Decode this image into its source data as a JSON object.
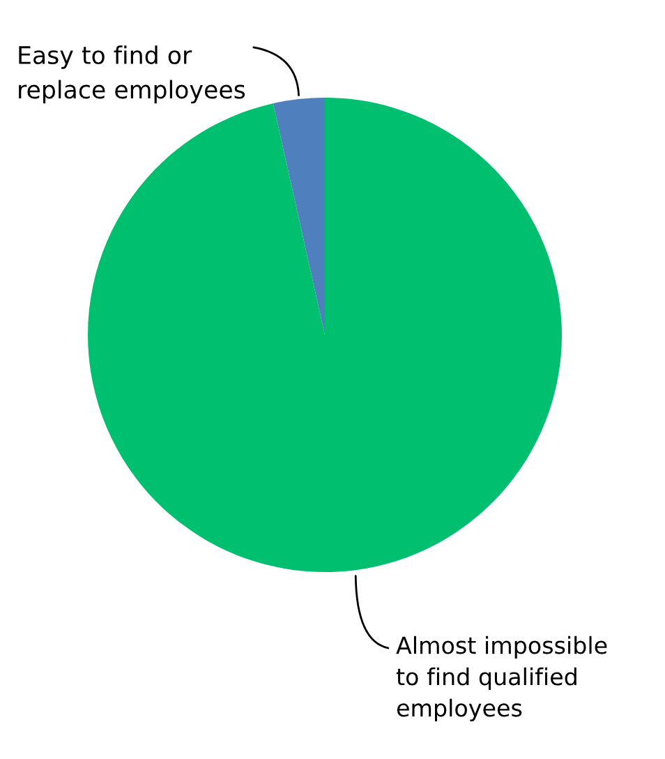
{
  "chart_data": {
    "type": "pie",
    "categories": [
      "Easy to find or\nreplace employees",
      "Almost impossible\nto find qualified\nemployees"
    ],
    "values": [
      3.5,
      96.5
    ],
    "colors": [
      "#4f7fbd",
      "#00bf6f"
    ],
    "legend": false
  }
}
